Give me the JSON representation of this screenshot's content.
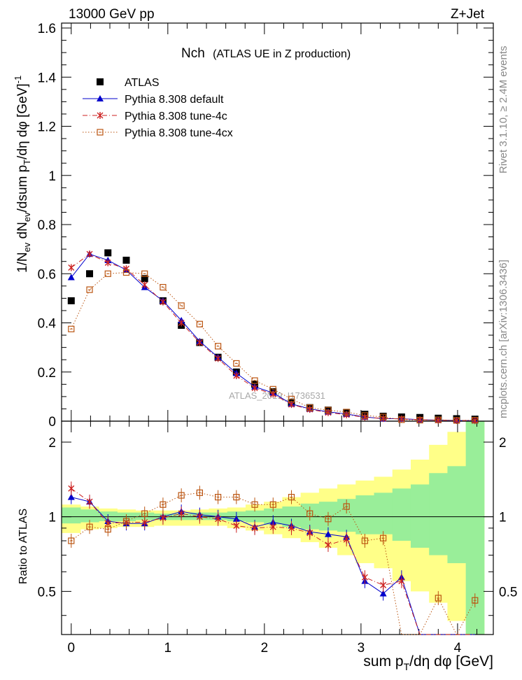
{
  "header": {
    "energy_label": "13000 GeV pp",
    "process_label": "Z+Jet",
    "plot_title": "Nch",
    "plot_subtitle": "(ATLAS UE in Z production)",
    "watermark": "ATLAS_2019_I1736531",
    "side_label_top": "Rivet 3.1.10, ≥ 2.4M events",
    "side_label_bottom": "mcplots.cern.ch [arXiv:1306.3436]"
  },
  "axes": {
    "ylabel_main": "1/N_ev dN_ev/dsum p_T/dη dφ [GeV]^-1",
    "ylabel_ratio": "Ratio to ATLAS",
    "xlabel": "sum p_T/dη dφ [GeV]",
    "main_yticks": [
      "0",
      "0.2",
      "0.4",
      "0.6",
      "0.8",
      "1",
      "1.2",
      "1.4",
      "1.6"
    ],
    "ratio_yticks": [
      "0.5",
      "1",
      "2"
    ],
    "xticks": [
      "0",
      "1",
      "2",
      "3",
      "4"
    ]
  },
  "legend": {
    "items": [
      {
        "label": "ATLAS",
        "color": "#000000",
        "marker": "square"
      },
      {
        "label": "Pythia 8.308 default",
        "color": "#0000cc",
        "marker": "triangle"
      },
      {
        "label": "Pythia 8.308 tune-4c",
        "color": "#cc2222",
        "marker": "star"
      },
      {
        "label": "Pythia 8.308 tune-4cx",
        "color": "#bb5511",
        "marker": "open-square"
      }
    ]
  },
  "chart_data": {
    "type": "scatter",
    "xlim": [
      -0.1,
      4.37
    ],
    "main_ylim": [
      0,
      1.62
    ],
    "ratio_ylim": [
      0.335,
      2.43
    ],
    "ratio_scale": "log",
    "x": [
      0.0,
      0.19,
      0.38,
      0.57,
      0.76,
      0.95,
      1.14,
      1.33,
      1.52,
      1.71,
      1.9,
      2.09,
      2.28,
      2.47,
      2.66,
      2.85,
      3.04,
      3.23,
      3.42,
      3.61,
      3.8,
      3.99,
      4.18
    ],
    "series": [
      {
        "name": "ATLAS",
        "color": "#000000",
        "marker": "square",
        "values": [
          0.49,
          0.6,
          0.685,
          0.655,
          0.58,
          0.49,
          0.39,
          0.32,
          0.26,
          0.2,
          0.15,
          0.12,
          0.075,
          0.055,
          0.045,
          0.035,
          0.028,
          0.02,
          0.017,
          0.015,
          0.012,
          0.01,
          0.008
        ]
      },
      {
        "name": "Pythia 8.308 default",
        "color": "#0000cc",
        "marker": "triangle",
        "line": "solid",
        "values": [
          0.585,
          0.68,
          0.655,
          0.615,
          0.545,
          0.49,
          0.41,
          0.325,
          0.26,
          0.195,
          0.14,
          0.115,
          0.07,
          0.05,
          0.038,
          0.029,
          0.017,
          0.01,
          0.01,
          0.006,
          0.004,
          0.003,
          0.002
        ]
      },
      {
        "name": "Pythia 8.308 tune-4c",
        "color": "#cc2222",
        "marker": "star",
        "line": "dashdot",
        "values": [
          0.625,
          0.68,
          0.645,
          0.62,
          0.555,
          0.485,
          0.4,
          0.32,
          0.255,
          0.185,
          0.135,
          0.11,
          0.068,
          0.048,
          0.035,
          0.026,
          0.016,
          0.011,
          0.009,
          0.006,
          0.004,
          0.003,
          0.002
        ]
      },
      {
        "name": "Pythia 8.308 tune-4cx",
        "color": "#bb5511",
        "marker": "open-square",
        "line": "dotted",
        "values": [
          0.375,
          0.535,
          0.6,
          0.605,
          0.6,
          0.545,
          0.47,
          0.395,
          0.305,
          0.235,
          0.165,
          0.13,
          0.09,
          0.055,
          0.045,
          0.037,
          0.023,
          0.017,
          0.006,
          0.004,
          0.0055,
          0.003,
          0.004
        ]
      }
    ],
    "ratios": [
      {
        "name": "Pythia 8.308 default",
        "values": [
          1.2,
          1.15,
          0.96,
          0.94,
          0.94,
          1.0,
          1.05,
          1.02,
          1.0,
          0.98,
          0.91,
          0.95,
          0.92,
          0.87,
          0.85,
          0.83,
          0.55,
          0.49,
          0.57,
          0.3,
          0.3,
          0.3,
          0.3
        ]
      },
      {
        "name": "Pythia 8.308 tune-4c",
        "values": [
          1.3,
          1.15,
          0.94,
          0.95,
          0.95,
          0.99,
          1.03,
          1.0,
          0.98,
          0.92,
          0.9,
          0.91,
          0.9,
          0.86,
          0.77,
          0.81,
          0.57,
          0.53,
          0.55,
          0.3,
          0.3,
          0.3,
          0.3
        ]
      },
      {
        "name": "Pythia 8.308 tune-4cx",
        "values": [
          0.8,
          0.91,
          0.89,
          0.96,
          1.03,
          1.12,
          1.22,
          1.25,
          1.2,
          1.2,
          1.12,
          1.12,
          1.2,
          1.03,
          0.98,
          1.1,
          0.8,
          0.82,
          0.3,
          0.3,
          0.47,
          0.3,
          0.46
        ]
      }
    ],
    "bands": {
      "edges": [
        -0.1,
        0.095,
        0.285,
        0.475,
        0.665,
        0.855,
        1.045,
        1.235,
        1.425,
        1.615,
        1.805,
        1.995,
        2.185,
        2.375,
        2.565,
        2.755,
        2.945,
        3.135,
        3.325,
        3.515,
        3.705,
        3.895,
        4.085,
        4.275
      ],
      "green": [
        [
          0.94,
          1.09
        ],
        [
          0.95,
          1.07
        ],
        [
          0.96,
          1.05
        ],
        [
          0.96,
          1.04
        ],
        [
          0.97,
          1.04
        ],
        [
          0.97,
          1.03
        ],
        [
          0.97,
          1.03
        ],
        [
          0.97,
          1.04
        ],
        [
          0.97,
          1.04
        ],
        [
          0.96,
          1.05
        ],
        [
          0.95,
          1.06
        ],
        [
          0.93,
          1.08
        ],
        [
          0.91,
          1.1
        ],
        [
          0.89,
          1.13
        ],
        [
          0.88,
          1.15
        ],
        [
          0.87,
          1.18
        ],
        [
          0.85,
          1.22
        ],
        [
          0.85,
          1.25
        ],
        [
          0.8,
          1.3
        ],
        [
          0.75,
          1.35
        ],
        [
          0.7,
          1.5
        ],
        [
          0.65,
          1.6
        ],
        [
          0.3,
          2.43
        ]
      ],
      "yellow": [
        [
          0.86,
          1.12
        ],
        [
          0.89,
          1.1
        ],
        [
          0.9,
          1.08
        ],
        [
          0.91,
          1.07
        ],
        [
          0.91,
          1.06
        ],
        [
          0.92,
          1.06
        ],
        [
          0.92,
          1.06
        ],
        [
          0.92,
          1.07
        ],
        [
          0.92,
          1.08
        ],
        [
          0.9,
          1.09
        ],
        [
          0.88,
          1.12
        ],
        [
          0.85,
          1.15
        ],
        [
          0.82,
          1.2
        ],
        [
          0.79,
          1.25
        ],
        [
          0.75,
          1.3
        ],
        [
          0.7,
          1.35
        ],
        [
          0.65,
          1.4
        ],
        [
          0.62,
          1.45
        ],
        [
          0.55,
          1.55
        ],
        [
          0.5,
          1.7
        ],
        [
          0.45,
          1.95
        ],
        [
          0.38,
          2.2
        ],
        [
          0.3,
          2.43
        ]
      ]
    }
  }
}
